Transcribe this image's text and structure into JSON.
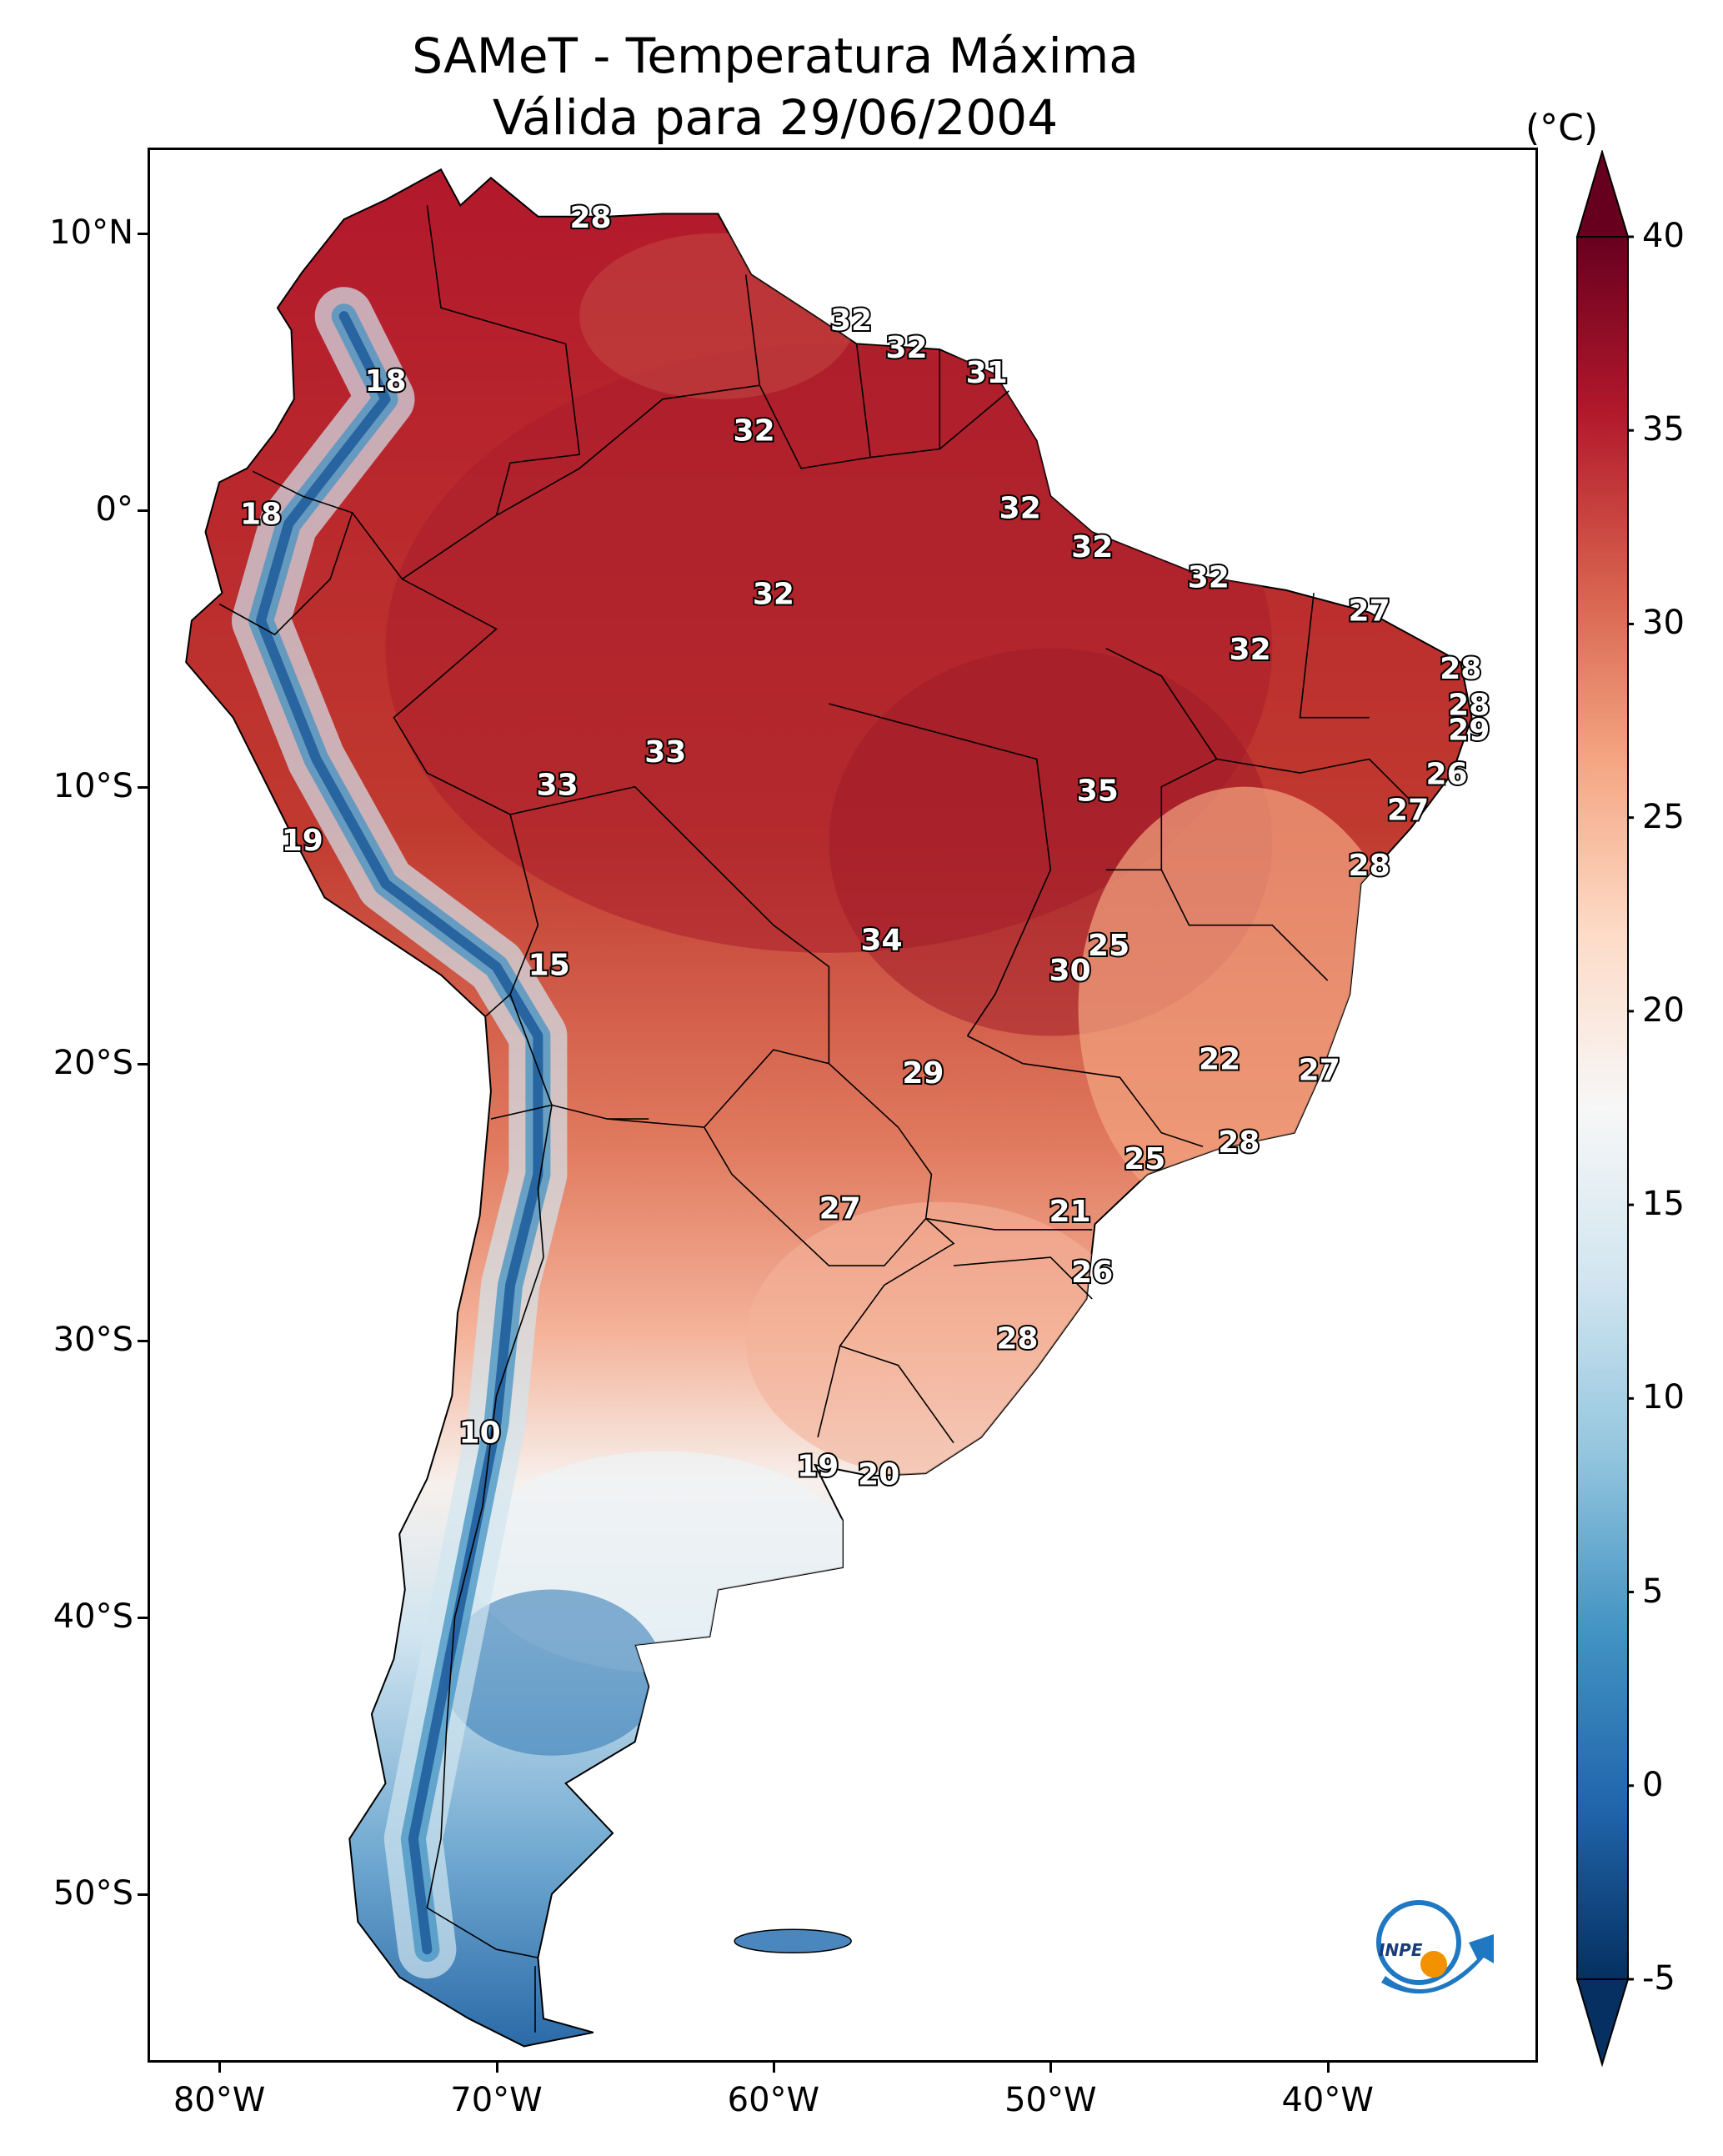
{
  "title": {
    "line1": "SAMeT - Temperatura Máxima",
    "line2": "Válida para 29/06/2004"
  },
  "map": {
    "lon_range": [
      -82.5,
      -32.5
    ],
    "lat_range": [
      -56.0,
      13.0
    ],
    "lat_ticks": [
      {
        "value": 10,
        "label": "10°N"
      },
      {
        "value": 0,
        "label": "0°"
      },
      {
        "value": -10,
        "label": "10°S"
      },
      {
        "value": -20,
        "label": "20°S"
      },
      {
        "value": -30,
        "label": "30°S"
      },
      {
        "value": -40,
        "label": "40°S"
      },
      {
        "value": -50,
        "label": "50°S"
      }
    ],
    "lon_ticks": [
      {
        "value": -80,
        "label": "80°W"
      },
      {
        "value": -70,
        "label": "70°W"
      },
      {
        "value": -60,
        "label": "60°W"
      },
      {
        "value": -50,
        "label": "50°W"
      },
      {
        "value": -40,
        "label": "40°W"
      }
    ],
    "station_values": [
      {
        "lon": -66.6,
        "lat": 10.5,
        "text": "28"
      },
      {
        "lon": -74.0,
        "lat": 4.6,
        "text": "18"
      },
      {
        "lon": -57.2,
        "lat": 6.8,
        "text": "32"
      },
      {
        "lon": -55.2,
        "lat": 5.8,
        "text": "32"
      },
      {
        "lon": -52.3,
        "lat": 4.9,
        "text": "31"
      },
      {
        "lon": -60.7,
        "lat": 2.8,
        "text": "32"
      },
      {
        "lon": -78.5,
        "lat": -0.2,
        "text": "18"
      },
      {
        "lon": -51.1,
        "lat": 0.0,
        "text": "32"
      },
      {
        "lon": -48.5,
        "lat": -1.4,
        "text": "32"
      },
      {
        "lon": -60.0,
        "lat": -3.1,
        "text": "32"
      },
      {
        "lon": -44.3,
        "lat": -2.5,
        "text": "32"
      },
      {
        "lon": -38.5,
        "lat": -3.7,
        "text": "27"
      },
      {
        "lon": -42.8,
        "lat": -5.1,
        "text": "32"
      },
      {
        "lon": -35.2,
        "lat": -5.8,
        "text": "28"
      },
      {
        "lon": -34.9,
        "lat": -7.1,
        "text": "28"
      },
      {
        "lon": -34.9,
        "lat": -8.0,
        "text": "29"
      },
      {
        "lon": -35.7,
        "lat": -9.6,
        "text": "26"
      },
      {
        "lon": -37.1,
        "lat": -10.9,
        "text": "27"
      },
      {
        "lon": -63.9,
        "lat": -8.8,
        "text": "33"
      },
      {
        "lon": -67.8,
        "lat": -10.0,
        "text": "33"
      },
      {
        "lon": -48.3,
        "lat": -10.2,
        "text": "35"
      },
      {
        "lon": -77.0,
        "lat": -12.0,
        "text": "19"
      },
      {
        "lon": -38.5,
        "lat": -12.9,
        "text": "28"
      },
      {
        "lon": -56.1,
        "lat": -15.6,
        "text": "34"
      },
      {
        "lon": -47.9,
        "lat": -15.8,
        "text": "25"
      },
      {
        "lon": -49.3,
        "lat": -16.7,
        "text": "30"
      },
      {
        "lon": -68.1,
        "lat": -16.5,
        "text": "15"
      },
      {
        "lon": -43.9,
        "lat": -19.9,
        "text": "22"
      },
      {
        "lon": -40.3,
        "lat": -20.3,
        "text": "27"
      },
      {
        "lon": -54.6,
        "lat": -20.4,
        "text": "29"
      },
      {
        "lon": -43.2,
        "lat": -22.9,
        "text": "28"
      },
      {
        "lon": -46.6,
        "lat": -23.5,
        "text": "25"
      },
      {
        "lon": -57.6,
        "lat": -25.3,
        "text": "27"
      },
      {
        "lon": -49.3,
        "lat": -25.4,
        "text": "21"
      },
      {
        "lon": -48.5,
        "lat": -27.6,
        "text": "26"
      },
      {
        "lon": -51.2,
        "lat": -30.0,
        "text": "28"
      },
      {
        "lon": -70.6,
        "lat": -33.4,
        "text": "10"
      },
      {
        "lon": -58.4,
        "lat": -34.6,
        "text": "19"
      },
      {
        "lon": -56.2,
        "lat": -34.9,
        "text": "20"
      }
    ]
  },
  "colorbar": {
    "unit": "(°C)",
    "min": -5,
    "max": 40,
    "ticks": [
      {
        "value": 40,
        "label": "40"
      },
      {
        "value": 35,
        "label": "35"
      },
      {
        "value": 30,
        "label": "30"
      },
      {
        "value": 25,
        "label": "25"
      },
      {
        "value": 20,
        "label": "20"
      },
      {
        "value": 15,
        "label": "15"
      },
      {
        "value": 10,
        "label": "10"
      },
      {
        "value": 5,
        "label": "5"
      },
      {
        "value": 0,
        "label": "0"
      },
      {
        "value": -5,
        "label": "-5"
      }
    ],
    "colors": [
      "#053061",
      "#2166ac",
      "#4393c3",
      "#92c5de",
      "#d1e5f0",
      "#f7f7f7",
      "#fddbc7",
      "#f4a582",
      "#d6604d",
      "#b2182b",
      "#67001f"
    ]
  },
  "logo": {
    "text": "INPE",
    "colors": {
      "blue": "#1f78c1",
      "orange": "#f39200"
    }
  }
}
